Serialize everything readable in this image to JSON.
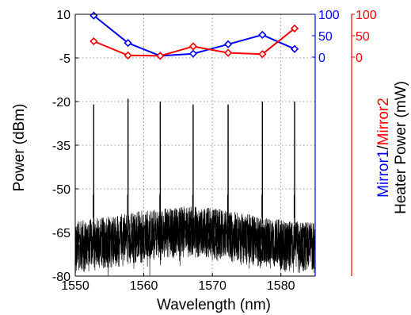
{
  "chart_data": {
    "type": "line",
    "xlabel": "Wavelength (nm)",
    "ylabel": "Power (dBm)",
    "xlim": [
      1550,
      1585
    ],
    "ylim": [
      -80,
      10
    ],
    "xticks": [
      1550,
      1560,
      1570,
      1580
    ],
    "yticks": [
      10,
      -5,
      -20,
      -35,
      -50,
      -65,
      -80
    ],
    "grid": true,
    "colors": {
      "mirror1": "#0000ff",
      "mirror2": "#ff0000",
      "spectrum": "#000000"
    },
    "right_axis": {
      "label_parts": [
        "Mirror1",
        "/",
        "Mirror2"
      ],
      "label_line2": "Heater Power (mW)",
      "mirror1_ticks": [
        "100",
        "50",
        "0"
      ],
      "mirror2_ticks": [
        "100",
        "50",
        "0"
      ],
      "range": [
        0,
        100
      ]
    },
    "spectrum": {
      "noise_floor_dbm": -70,
      "peaks": [
        {
          "x": 1552.7,
          "y": -21
        },
        {
          "x": 1557.7,
          "y": -19
        },
        {
          "x": 1562.4,
          "y": -20
        },
        {
          "x": 1567.2,
          "y": -21
        },
        {
          "x": 1572.3,
          "y": -21
        },
        {
          "x": 1577.3,
          "y": -20
        },
        {
          "x": 1582.0,
          "y": -20
        }
      ]
    },
    "series": [
      {
        "name": "Mirror1",
        "color": "#0000ff",
        "marker": "diamond",
        "x": [
          1552.7,
          1557.7,
          1562.4,
          1567.2,
          1572.3,
          1577.3,
          1582.0
        ],
        "values": [
          97,
          33,
          3,
          8,
          30,
          52,
          19
        ]
      },
      {
        "name": "Mirror2",
        "color": "#ff0000",
        "marker": "diamond",
        "x": [
          1552.7,
          1557.7,
          1562.4,
          1567.2,
          1572.3,
          1577.3,
          1582.0
        ],
        "values": [
          37,
          4,
          3,
          25,
          10,
          7,
          67
        ]
      }
    ]
  }
}
